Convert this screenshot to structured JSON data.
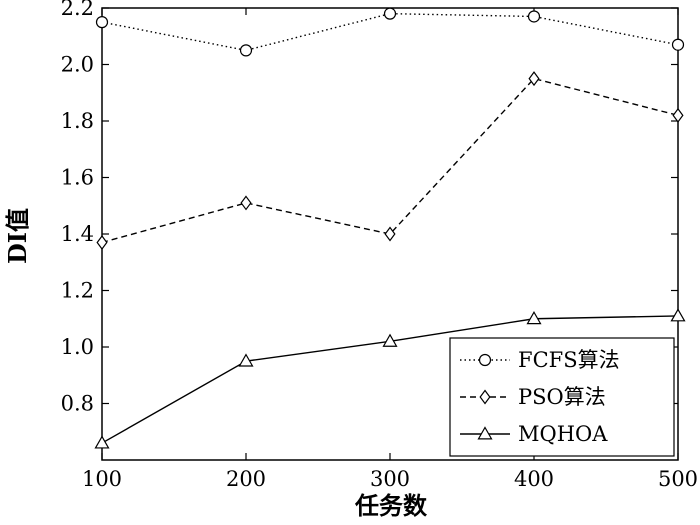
{
  "chart_data": {
    "type": "line",
    "title": "",
    "xlabel": "任务数",
    "ylabel": "DI值",
    "x": [
      100,
      200,
      300,
      400,
      500
    ],
    "xlim": [
      100,
      500
    ],
    "ylim": [
      0.6,
      2.2
    ],
    "xticks": [
      "100",
      "200",
      "300",
      "400",
      "500"
    ],
    "yticks": [
      "0.8",
      "1.0",
      "1.2",
      "1.4",
      "1.6",
      "1.8",
      "2.0",
      "2.2"
    ],
    "grid": false,
    "legend_position": "bottom-right",
    "series": [
      {
        "name": "FCFS算法",
        "marker": "circle",
        "linestyle": "dotted",
        "color": "#000000",
        "values": [
          2.15,
          2.05,
          2.18,
          2.17,
          2.07
        ]
      },
      {
        "name": "PSO算法",
        "marker": "diamond",
        "linestyle": "dashed",
        "color": "#000000",
        "values": [
          1.37,
          1.51,
          1.4,
          1.95,
          1.82
        ]
      },
      {
        "name": "MQHOA",
        "marker": "triangle",
        "linestyle": "solid",
        "color": "#000000",
        "values": [
          0.66,
          0.95,
          1.02,
          1.1,
          1.11
        ]
      }
    ]
  }
}
